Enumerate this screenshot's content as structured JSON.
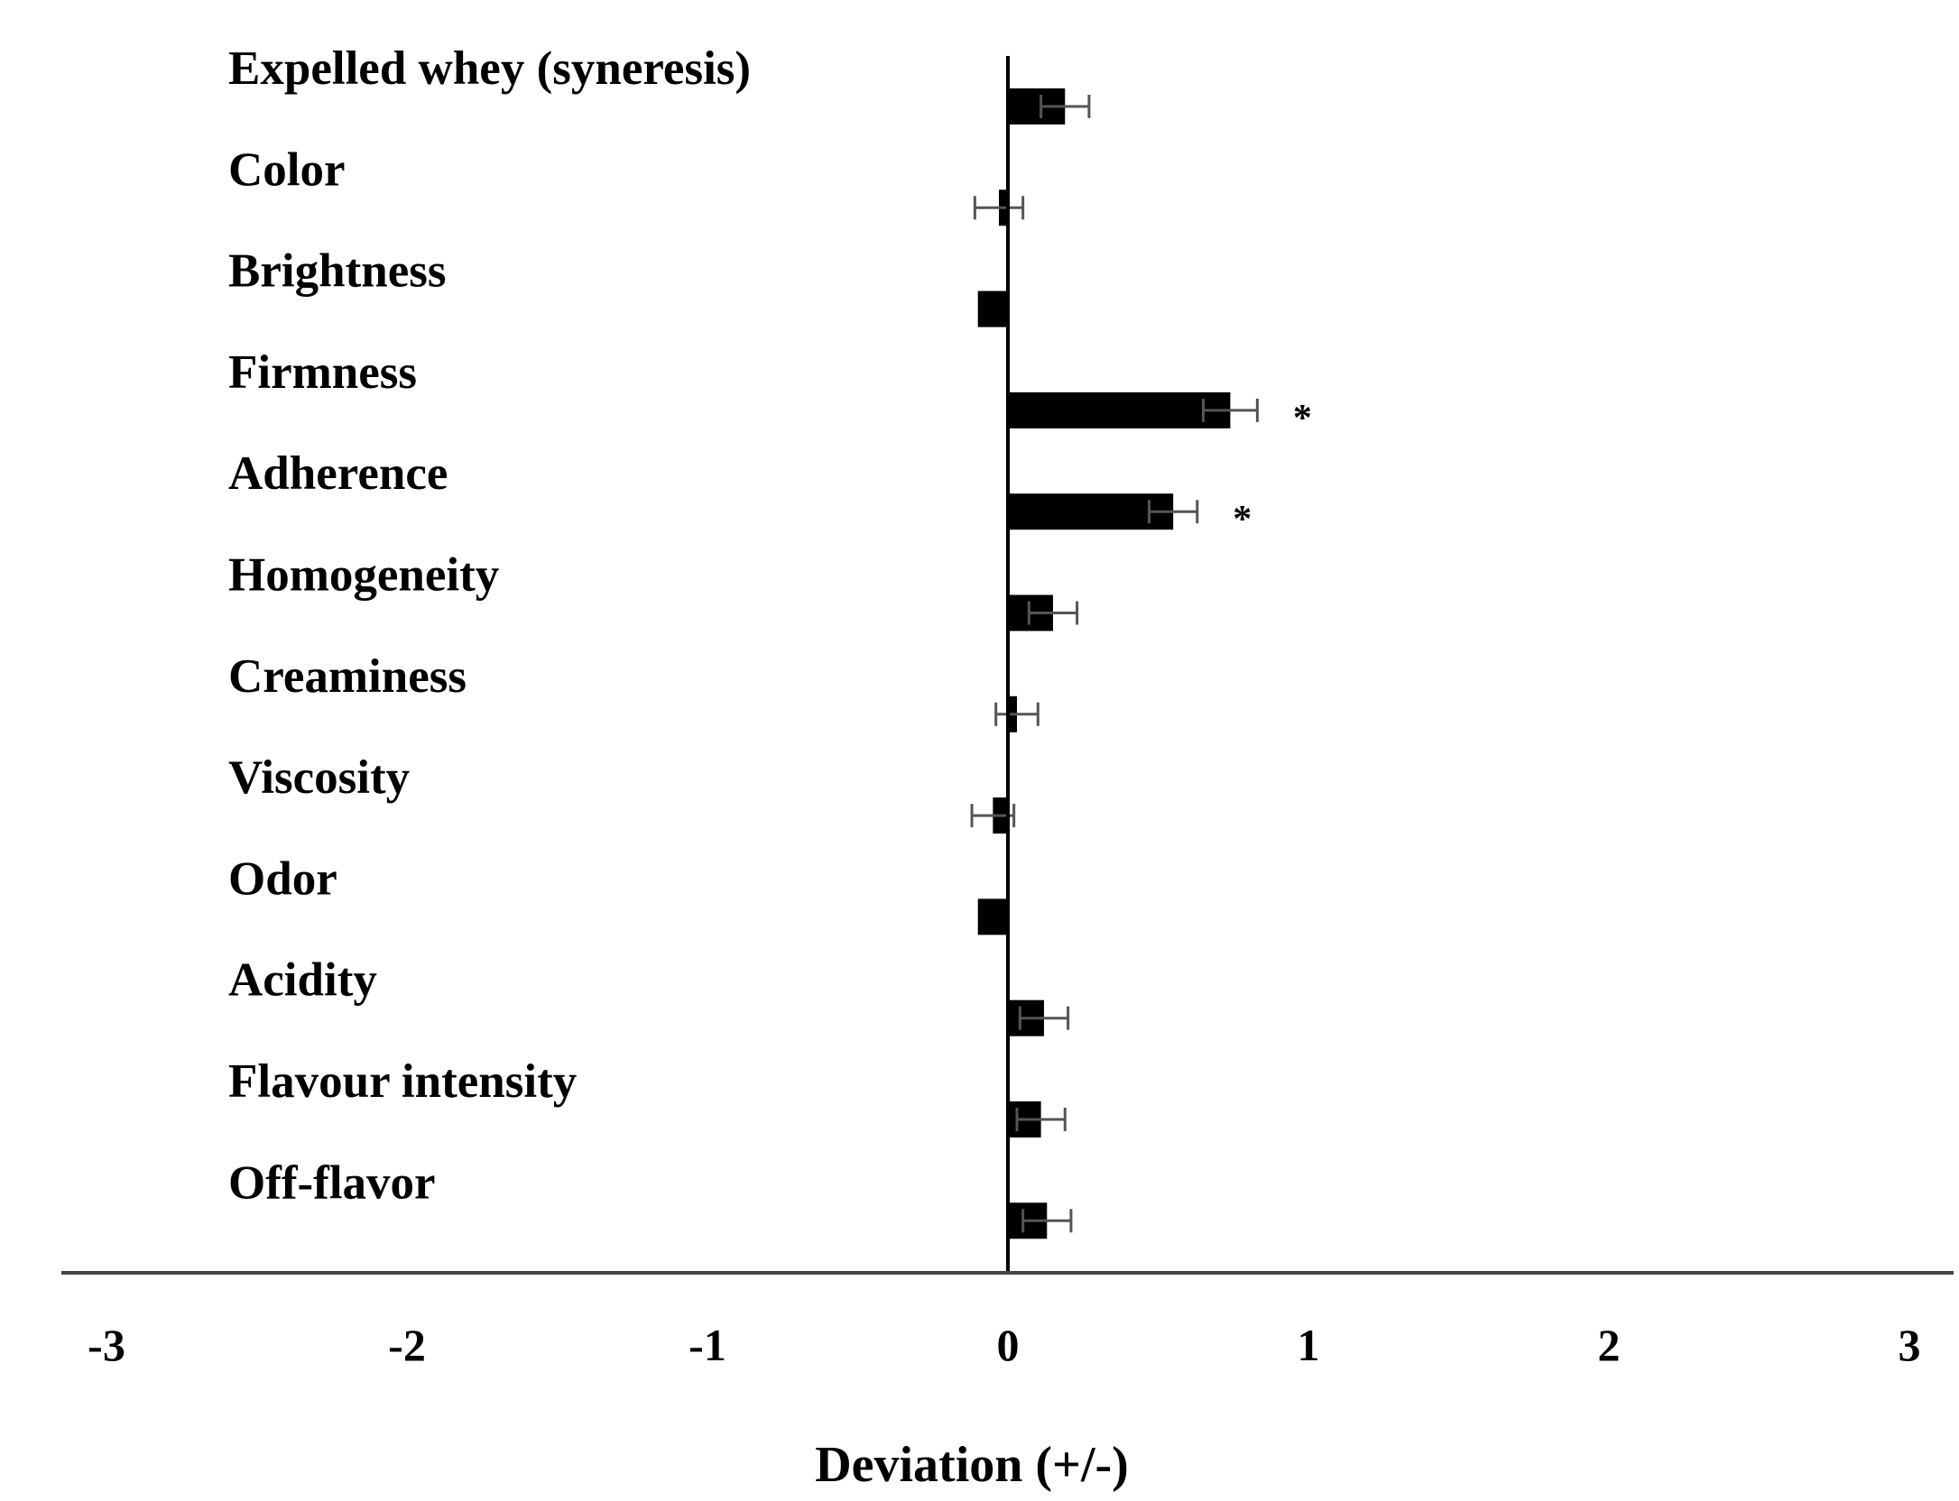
{
  "chart_data": {
    "type": "bar",
    "orientation": "horizontal",
    "categories": [
      "Expelled whey (syneresis)",
      "Color",
      "Brightness",
      "Firmness",
      "Adherence",
      "Homogeneity",
      "Creaminess",
      "Viscosity",
      "Odor",
      "Acidity",
      "Flavour intensity",
      "Off-flavor"
    ],
    "values": [
      0.19,
      -0.03,
      -0.1,
      0.74,
      0.55,
      0.15,
      0.03,
      -0.05,
      -0.1,
      0.12,
      0.11,
      0.13
    ],
    "errors": [
      0.08,
      0.08,
      0.0,
      0.09,
      0.08,
      0.08,
      0.07,
      0.07,
      0.0,
      0.08,
      0.08,
      0.08
    ],
    "significance": [
      "",
      "",
      "",
      "*",
      "*",
      "",
      "",
      "",
      "",
      "",
      "",
      ""
    ],
    "xlim": [
      -3,
      3
    ],
    "xticks": [
      -3,
      -2,
      -1,
      0,
      1,
      2,
      3
    ],
    "xtick_labels": [
      "-3",
      "-2",
      "-1",
      "0",
      "1",
      "2",
      "3"
    ],
    "title": "",
    "xlabel": "Deviation (+/-)",
    "ylabel": "",
    "grid": false,
    "legend": "none",
    "bar_color": "#000000",
    "error_bar_color": "#555555"
  }
}
